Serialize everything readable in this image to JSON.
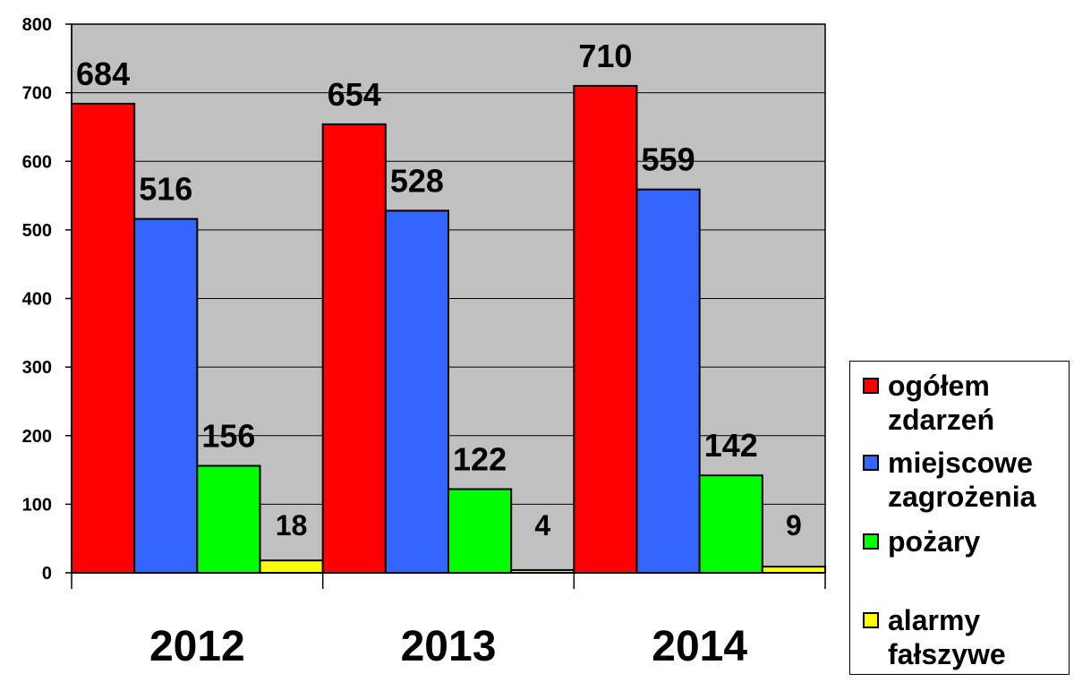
{
  "chart_data": {
    "type": "bar",
    "categories": [
      "2012",
      "2013",
      "2014"
    ],
    "series": [
      {
        "name": "ogółem zdarzeń",
        "color": "#ff0000",
        "values": [
          684,
          654,
          710
        ]
      },
      {
        "name": "miejscowe zagrożenia",
        "color": "#3366ff",
        "values": [
          516,
          528,
          559
        ]
      },
      {
        "name": "pożary",
        "color": "#00ff00",
        "values": [
          156,
          122,
          142
        ]
      },
      {
        "name": "alarmy fałszywe",
        "color": "#ffff00",
        "values": [
          18,
          4,
          9
        ]
      }
    ],
    "data_labels": [
      [
        "684",
        "516",
        "156",
        "18"
      ],
      [
        "654",
        "528",
        "122",
        "4"
      ],
      [
        "710",
        "559",
        "142",
        "9"
      ]
    ],
    "yticks": [
      "0",
      "100",
      "200",
      "300",
      "400",
      "500",
      "600",
      "700",
      "800"
    ],
    "ylim": [
      0,
      800
    ],
    "grid": true,
    "plot_background": "#c0c0c0",
    "legend_position": "right",
    "title": "",
    "xlabel": "",
    "ylabel": ""
  },
  "legend": {
    "items": [
      {
        "line1": "ogółem",
        "line2": "zdarzeń",
        "color": "#ff0000"
      },
      {
        "line1": "miejscowe",
        "line2": "zagrożenia",
        "color": "#3366ff"
      },
      {
        "line1": "pożary",
        "line2": "",
        "color": "#00ff00"
      },
      {
        "line1": "alarmy",
        "line2": "fałszywe",
        "color": "#ffff00"
      }
    ]
  }
}
